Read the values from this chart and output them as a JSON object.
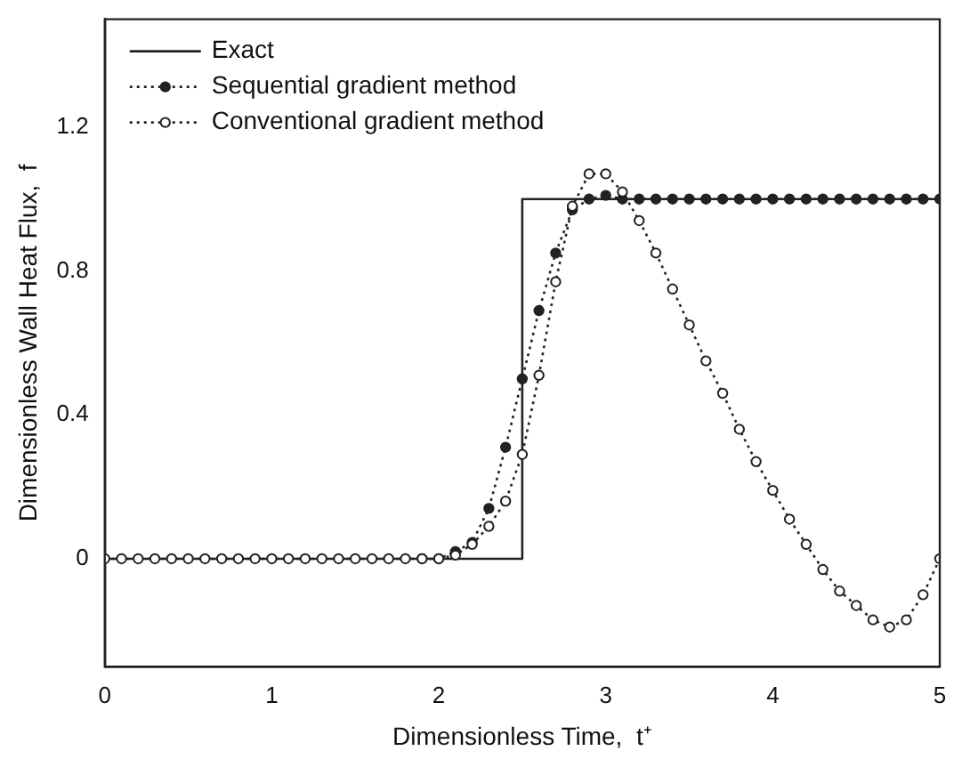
{
  "chart_data": {
    "type": "line",
    "xlabel": "Dimensionless Time,  t⁺",
    "ylabel": "Dimensionless Wall Heat Flux,  f",
    "xlim": [
      0,
      5
    ],
    "xticks": [
      0,
      1,
      2,
      3,
      4,
      5
    ],
    "ylim": [
      -0.3,
      1.5
    ],
    "yticks": [
      0,
      0.4,
      0.8,
      1.2
    ],
    "grid": false,
    "legend": "top left",
    "series": [
      {
        "name": "Exact",
        "color": "#222222",
        "line_style": "solid",
        "x": [
          0,
          2.5,
          2.5,
          5
        ],
        "values": [
          0,
          0,
          1,
          1
        ]
      },
      {
        "name": "Sequential gradient method",
        "color": "#222222",
        "line_style": "dotted",
        "marker": "circle",
        "x": [
          1.9,
          2,
          2.1,
          2.2,
          2.3,
          2.4,
          2.5,
          2.6,
          2.7,
          2.8,
          2.9,
          3,
          3.1,
          3.2,
          3.3,
          3.4,
          3.5,
          3.6,
          3.7,
          3.8,
          3.9,
          4,
          4.1,
          4.2,
          4.3,
          4.4,
          4.5,
          4.6,
          4.7,
          4.8,
          4.9,
          5
        ],
        "values": [
          0,
          0,
          0.02,
          0.045,
          0.14,
          0.31,
          0.5,
          0.69,
          0.85,
          0.97,
          1.0,
          1.01,
          1.0,
          1.0,
          1.0,
          1.0,
          1.0,
          1.0,
          1.0,
          1.0,
          1.0,
          1.0,
          1.0,
          1.0,
          1.0,
          1.0,
          1.0,
          1.0,
          1.0,
          1.0,
          1.0,
          1.0
        ]
      },
      {
        "name": "Conventional gradient method",
        "color": "#222222",
        "line_style": "dotted",
        "marker": "circle",
        "x": [
          0,
          0.1,
          0.2,
          0.3,
          0.4,
          0.5,
          0.6,
          0.7,
          0.8,
          0.9,
          1,
          1.1,
          1.2,
          1.3,
          1.4,
          1.5,
          1.6,
          1.7,
          1.8,
          1.9,
          2,
          2.1,
          2.2,
          2.3,
          2.4,
          2.5,
          2.6,
          2.7,
          2.8,
          2.9,
          3,
          3.1,
          3.2,
          3.3,
          3.4,
          3.5,
          3.6,
          3.7,
          3.8,
          3.9,
          4,
          4.1,
          4.2,
          4.3,
          4.4,
          4.5,
          4.6,
          4.7,
          4.8,
          4.9,
          5
        ],
        "values": [
          0,
          0,
          0,
          0,
          0,
          0,
          0,
          0,
          0,
          0,
          0,
          0,
          0,
          0,
          0,
          0,
          0,
          0,
          0,
          0,
          0,
          0.01,
          0.04,
          0.09,
          0.16,
          0.29,
          0.51,
          0.77,
          0.98,
          1.07,
          1.07,
          1.02,
          0.94,
          0.85,
          0.75,
          0.65,
          0.55,
          0.46,
          0.36,
          0.27,
          0.19,
          0.11,
          0.04,
          -0.03,
          -0.09,
          -0.13,
          -0.17,
          -0.19,
          -0.17,
          -0.1,
          0.0
        ]
      }
    ]
  }
}
